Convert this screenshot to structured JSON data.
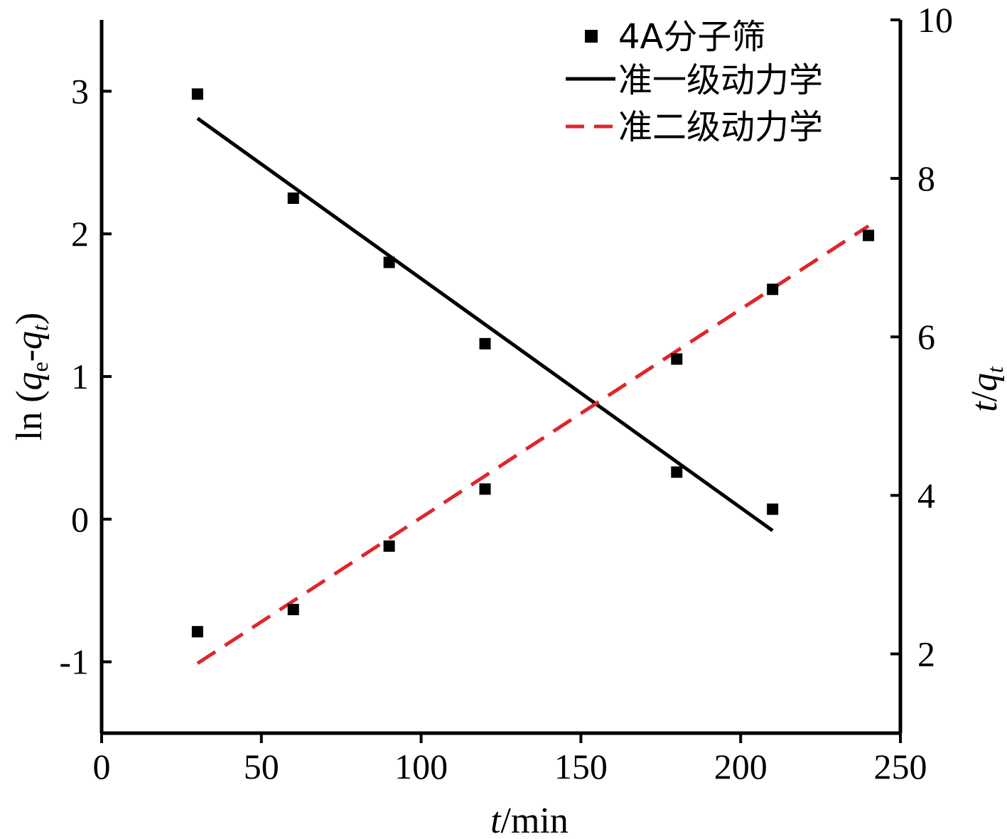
{
  "chart_data": {
    "type": "scatter",
    "x_axis": {
      "label_italic": "t",
      "label_rest": "/min",
      "range": [
        0,
        250
      ],
      "ticks": [
        0,
        50,
        100,
        150,
        200,
        250
      ],
      "tick_labels": [
        "0",
        "50",
        "100",
        "150",
        "200",
        "250"
      ]
    },
    "y_left": {
      "label_prefix": "ln (",
      "label_q": "q",
      "label_sub_e": "e",
      "label_dash": "-",
      "label_sub_t": "t",
      "label_suffix": ")",
      "range": [
        -1.5,
        3.5
      ],
      "ticks": [
        -1,
        0,
        1,
        2,
        3
      ],
      "tick_labels": [
        "-1",
        "0",
        "1",
        "2",
        "3"
      ]
    },
    "y_right": {
      "label_t": "t",
      "label_slash": "/",
      "label_q": "q",
      "label_sub": "t",
      "range": [
        1,
        10
      ],
      "ticks": [
        2,
        4,
        6,
        8,
        10
      ],
      "tick_labels": [
        "2",
        "4",
        "6",
        "8",
        "10"
      ]
    },
    "legend": {
      "position": "top-right",
      "items": [
        {
          "label": "4A分子筛",
          "marker": "square"
        },
        {
          "label": "准一级动力学",
          "marker": "solid-line"
        },
        {
          "label": "准二级动力学",
          "marker": "dashed-line"
        }
      ]
    },
    "series": [
      {
        "name": "4A分子筛",
        "axis": "left",
        "style": "square",
        "x": [
          30,
          60,
          90,
          120,
          180,
          210
        ],
        "y": [
          2.98,
          2.25,
          1.8,
          1.23,
          0.33,
          0.07
        ]
      },
      {
        "name": "4A分子筛",
        "axis": "right",
        "style": "square",
        "x": [
          30,
          60,
          90,
          120,
          180,
          210,
          240
        ],
        "y": [
          2.28,
          2.56,
          3.36,
          4.08,
          5.72,
          6.6,
          7.28
        ]
      },
      {
        "name": "准一级动力学",
        "axis": "left",
        "style": "solid-line",
        "x": [
          30,
          210
        ],
        "y": [
          2.81,
          -0.08
        ]
      },
      {
        "name": "准二级动力学",
        "axis": "right",
        "style": "dashed-line",
        "x": [
          30,
          240
        ],
        "y": [
          1.88,
          7.4
        ]
      }
    ],
    "colors": {
      "marker": "#000000",
      "first_order": "#000000",
      "second_order": "#e0262b"
    }
  }
}
